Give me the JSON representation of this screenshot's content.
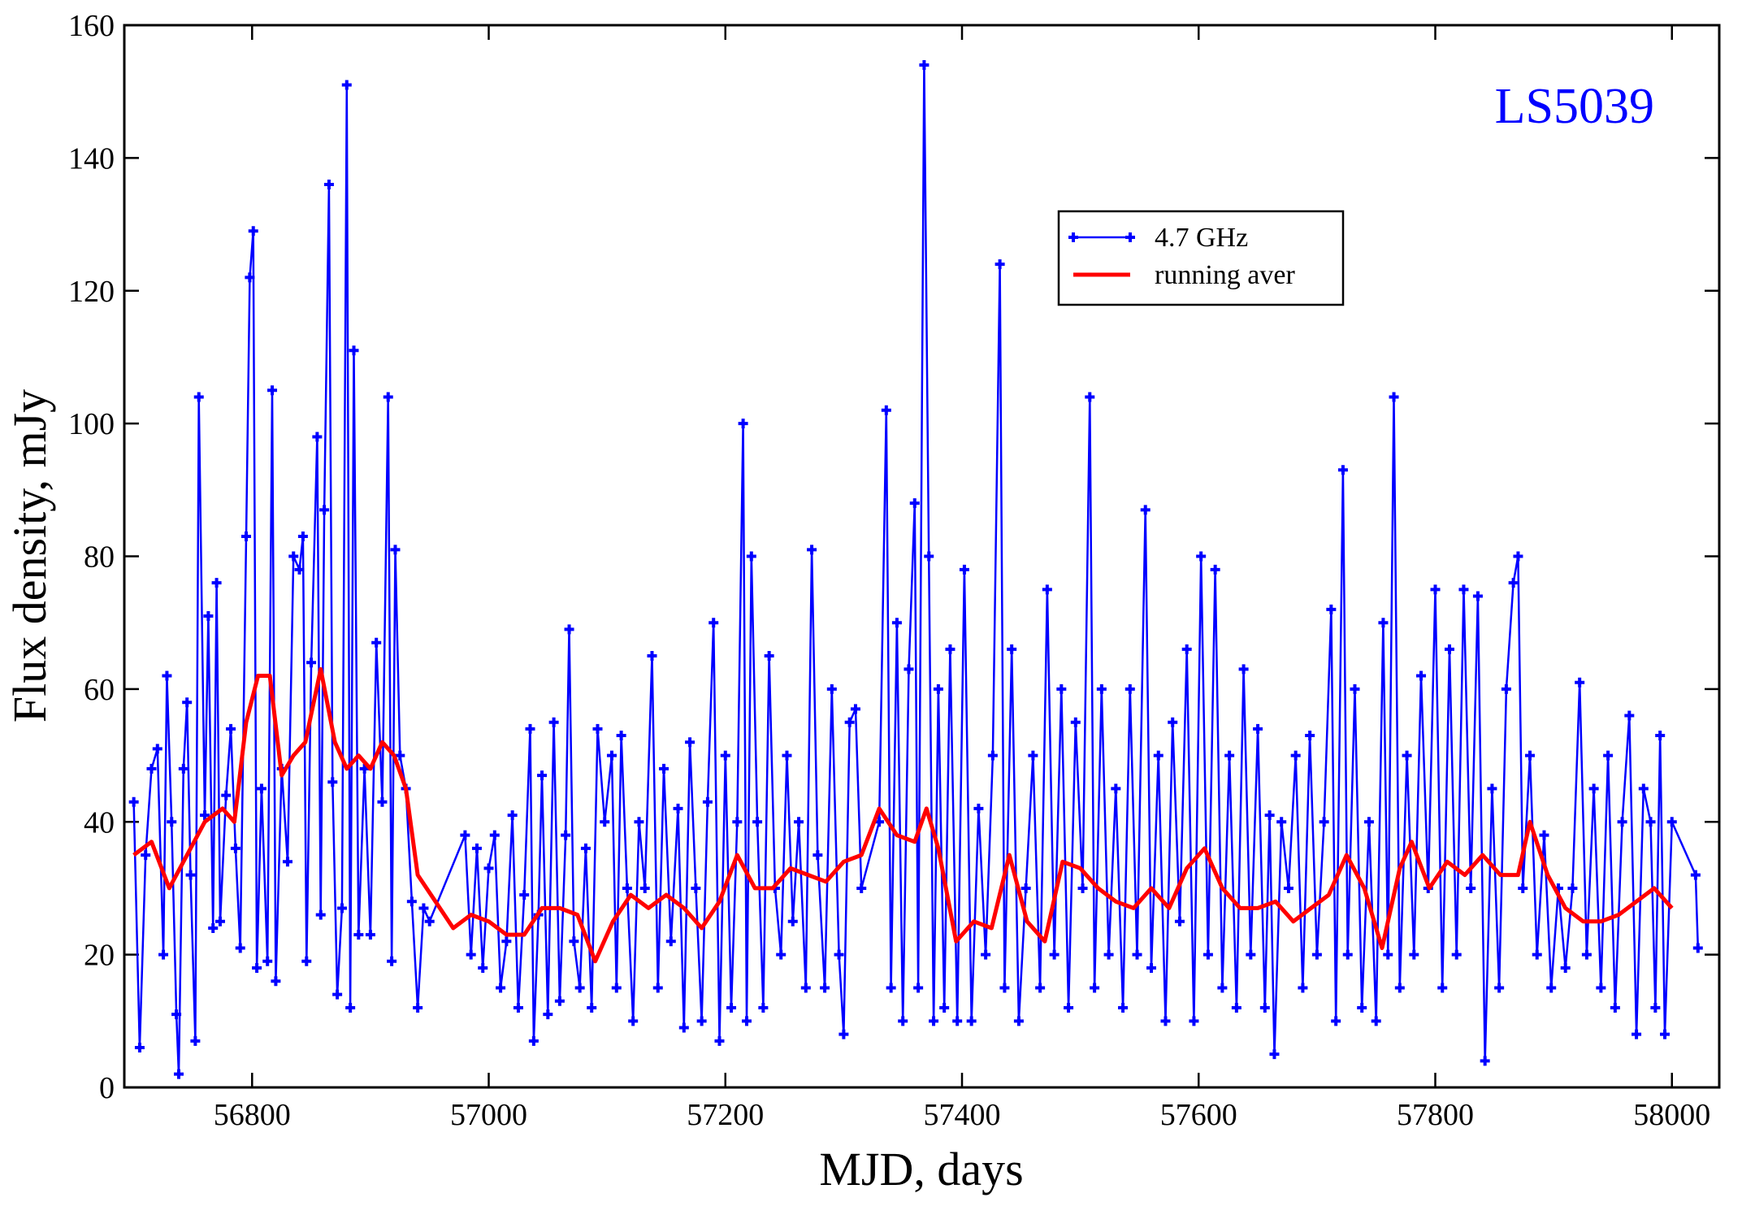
{
  "chart_data": {
    "type": "line",
    "xlabel": "MJD, days",
    "ylabel": "Flux density, mJy",
    "annotation": "LS5039",
    "annotation_color": "#0000ff",
    "legend_loc": "upper right",
    "xlim": [
      56692,
      58040
    ],
    "ylim": [
      0,
      160
    ],
    "xticks": [
      56800,
      57000,
      57200,
      57400,
      57600,
      57800,
      58000
    ],
    "yticks": [
      0,
      20,
      40,
      60,
      80,
      100,
      120,
      140,
      160
    ],
    "series": [
      {
        "name": "4.7 GHz",
        "color": "#0000ff",
        "markers": true,
        "x": [
          56700,
          56705,
          56710,
          56715,
          56720,
          56725,
          56728,
          56732,
          56736,
          56738,
          56742,
          56745,
          56748,
          56752,
          56755,
          56760,
          56763,
          56767,
          56770,
          56773,
          56778,
          56782,
          56786,
          56790,
          56795,
          56798,
          56801,
          56804,
          56808,
          56813,
          56817,
          56820,
          56825,
          56830,
          56835,
          56840,
          56843,
          56846,
          56850,
          56855,
          56858,
          56861,
          56865,
          56868,
          56872,
          56876,
          56880,
          56883,
          56886,
          56890,
          56895,
          56900,
          56905,
          56910,
          56915,
          56918,
          56921,
          56925,
          56930,
          56935,
          56940,
          56945,
          56950,
          56980,
          56985,
          56990,
          56995,
          57000,
          57005,
          57010,
          57015,
          57020,
          57025,
          57030,
          57035,
          57038,
          57042,
          57045,
          57050,
          57055,
          57060,
          57065,
          57068,
          57072,
          57077,
          57082,
          57087,
          57092,
          57098,
          57104,
          57108,
          57112,
          57117,
          57122,
          57127,
          57132,
          57138,
          57143,
          57148,
          57154,
          57160,
          57165,
          57170,
          57175,
          57180,
          57185,
          57190,
          57195,
          57200,
          57205,
          57210,
          57215,
          57218,
          57222,
          57227,
          57232,
          57237,
          57242,
          57247,
          57252,
          57257,
          57262,
          57268,
          57273,
          57278,
          57284,
          57290,
          57296,
          57300,
          57305,
          57310,
          57315,
          57330,
          57336,
          57340,
          57345,
          57350,
          57355,
          57360,
          57363,
          57368,
          57372,
          57376,
          57380,
          57385,
          57390,
          57396,
          57402,
          57408,
          57414,
          57420,
          57426,
          57432,
          57436,
          57442,
          57448,
          57454,
          57460,
          57466,
          57472,
          57478,
          57484,
          57490,
          57496,
          57502,
          57508,
          57512,
          57518,
          57524,
          57530,
          57536,
          57542,
          57548,
          57555,
          57560,
          57566,
          57572,
          57578,
          57584,
          57590,
          57596,
          57602,
          57608,
          57614,
          57620,
          57626,
          57632,
          57638,
          57644,
          57650,
          57656,
          57660,
          57664,
          57670,
          57676,
          57682,
          57688,
          57694,
          57700,
          57706,
          57712,
          57716,
          57722,
          57726,
          57732,
          57738,
          57744,
          57750,
          57756,
          57760,
          57765,
          57770,
          57776,
          57782,
          57788,
          57794,
          57800,
          57806,
          57812,
          57818,
          57824,
          57830,
          57836,
          57842,
          57848,
          57854,
          57860,
          57866,
          57870,
          57874,
          57880,
          57886,
          57892,
          57898,
          57904,
          57910,
          57916,
          57922,
          57928,
          57934,
          57940,
          57946,
          57952,
          57958,
          57964,
          57970,
          57976,
          57982,
          57986,
          57990,
          57994,
          58000,
          58020,
          58022
        ],
        "values": [
          43,
          6,
          35,
          48,
          51,
          20,
          62,
          40,
          11,
          2,
          48,
          58,
          32,
          7,
          104,
          41,
          71,
          24,
          76,
          25,
          44,
          54,
          36,
          21,
          83,
          122,
          129,
          18,
          45,
          19,
          105,
          16,
          48,
          34,
          80,
          78,
          83,
          19,
          64,
          98,
          26,
          87,
          136,
          46,
          14,
          27,
          151,
          12,
          111,
          23,
          48,
          23,
          67,
          43,
          104,
          19,
          81,
          50,
          45,
          28,
          12,
          27,
          25,
          38,
          20,
          36,
          18,
          33,
          38,
          15,
          22,
          41,
          12,
          29,
          54,
          7,
          26,
          47,
          11,
          55,
          13,
          38,
          69,
          22,
          15,
          36,
          12,
          54,
          40,
          50,
          15,
          53,
          30,
          10,
          40,
          30,
          65,
          15,
          48,
          22,
          42,
          9,
          52,
          30,
          10,
          43,
          70,
          7,
          50,
          12,
          40,
          100,
          10,
          80,
          40,
          12,
          65,
          30,
          20,
          50,
          25,
          40,
          15,
          81,
          35,
          15,
          60,
          20,
          8,
          55,
          57,
          30,
          40,
          102,
          15,
          70,
          10,
          63,
          88,
          15,
          154,
          80,
          10,
          60,
          12,
          66,
          10,
          78,
          10,
          42,
          20,
          50,
          124,
          15,
          66,
          10,
          30,
          50,
          15,
          75,
          20,
          60,
          12,
          55,
          30,
          104,
          15,
          60,
          20,
          45,
          12,
          60,
          20,
          87,
          18,
          50,
          10,
          55,
          25,
          66,
          10,
          80,
          20,
          78,
          15,
          50,
          12,
          63,
          20,
          54,
          12,
          41,
          5,
          40,
          30,
          50,
          15,
          53,
          20,
          40,
          72,
          10,
          93,
          20,
          60,
          12,
          40,
          10,
          70,
          20,
          104,
          15,
          50,
          20,
          62,
          30,
          75,
          15,
          66,
          20,
          75,
          30,
          74,
          4,
          45,
          15,
          60,
          76,
          80,
          30,
          50,
          20,
          38,
          15,
          30,
          18,
          30,
          61,
          20,
          45,
          15,
          50,
          12,
          40,
          56,
          8,
          45,
          40,
          12,
          53,
          8,
          40,
          32,
          21
        ]
      },
      {
        "name": "running aver",
        "color": "#ff0000",
        "markers": false,
        "x": [
          56700,
          56715,
          56730,
          56745,
          56760,
          56775,
          56785,
          56795,
          56805,
          56815,
          56825,
          56835,
          56845,
          56858,
          56870,
          56880,
          56890,
          56900,
          56910,
          56920,
          56930,
          56940,
          56955,
          56970,
          56985,
          57000,
          57015,
          57030,
          57045,
          57060,
          57075,
          57090,
          57105,
          57120,
          57135,
          57150,
          57165,
          57180,
          57195,
          57210,
          57225,
          57240,
          57255,
          57270,
          57285,
          57300,
          57315,
          57330,
          57345,
          57360,
          57370,
          57380,
          57395,
          57410,
          57425,
          57440,
          57455,
          57470,
          57485,
          57500,
          57515,
          57530,
          57545,
          57560,
          57575,
          57590,
          57605,
          57620,
          57635,
          57650,
          57665,
          57680,
          57695,
          57710,
          57725,
          57740,
          57755,
          57770,
          57780,
          57795,
          57810,
          57825,
          57840,
          57855,
          57870,
          57880,
          57895,
          57910,
          57925,
          57940,
          57955,
          57970,
          57985,
          58000
        ],
        "values": [
          35,
          37,
          30,
          35,
          40,
          42,
          40,
          55,
          62,
          62,
          47,
          50,
          52,
          63,
          52,
          48,
          50,
          48,
          52,
          50,
          45,
          32,
          28,
          24,
          26,
          25,
          23,
          23,
          27,
          27,
          26,
          19,
          25,
          29,
          27,
          29,
          27,
          24,
          28,
          35,
          30,
          30,
          33,
          32,
          31,
          34,
          35,
          42,
          38,
          37,
          42,
          36,
          22,
          25,
          24,
          35,
          25,
          22,
          34,
          33,
          30,
          28,
          27,
          30,
          27,
          33,
          36,
          30,
          27,
          27,
          28,
          25,
          27,
          29,
          35,
          30,
          21,
          33,
          37,
          30,
          34,
          32,
          35,
          32,
          32,
          40,
          32,
          27,
          25,
          25,
          26,
          28,
          30,
          27
        ]
      }
    ]
  }
}
